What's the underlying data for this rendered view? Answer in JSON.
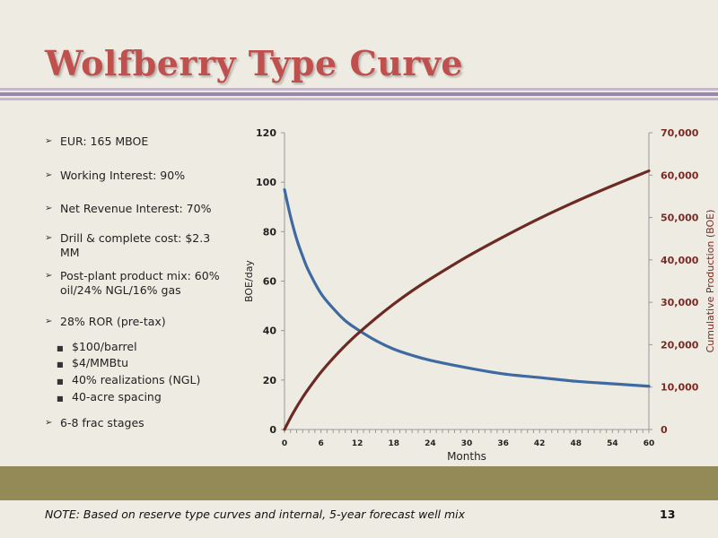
{
  "slide": {
    "title": "Wolfberry Type Curve",
    "note": "NOTE: Based on reserve type curves and internal, 5-year forecast well mix",
    "page_number": "13"
  },
  "bullets": [
    {
      "text": "EUR: 165 MBOE",
      "level": 1
    },
    {
      "text": "Working Interest: 90%",
      "level": 1
    },
    {
      "text": "Net Revenue Interest: 70%",
      "level": 1
    },
    {
      "text": "Drill & complete cost: $2.3 MM",
      "level": 1
    },
    {
      "text": "Post-plant product mix: 60% oil/24% NGL/16% gas",
      "level": 1
    },
    {
      "text": "28% ROR (pre-tax)",
      "level": 1
    },
    {
      "text": "$100/barrel",
      "level": 2
    },
    {
      "text": "$4/MMBtu",
      "level": 2
    },
    {
      "text": "40% realizations (NGL)",
      "level": 2
    },
    {
      "text": "40-acre spacing",
      "level": 2
    },
    {
      "text": "6-8 frac stages",
      "level": 1
    }
  ],
  "colors": {
    "title": "#c0504d",
    "boe_series": "#3e6aa1",
    "cumulative_series": "#6b2a22",
    "right_axis_text": "#7a2a22",
    "band": "#938a57",
    "rule": "#9b86ad"
  },
  "chart_data": {
    "type": "line",
    "xlabel": "Months",
    "ylabel": "BOE/day",
    "y2label": "Cumulative Production (BOE)",
    "xlim": [
      0,
      60
    ],
    "ylim": [
      0,
      120
    ],
    "y2lim": [
      0,
      70000
    ],
    "x_ticks": [
      0,
      6,
      12,
      18,
      24,
      30,
      36,
      42,
      48,
      54,
      60
    ],
    "y_ticks": [
      "0",
      "20",
      "40",
      "60",
      "80",
      "100",
      "120"
    ],
    "y2_ticks": [
      "0",
      "10,000",
      "20,000",
      "30,000",
      "40,000",
      "50,000",
      "60,000",
      "70,000"
    ],
    "x": [
      0,
      1,
      2,
      3,
      4,
      6,
      8,
      10,
      12,
      15,
      18,
      21,
      24,
      30,
      36,
      42,
      48,
      54,
      60
    ],
    "series": [
      {
        "axis": "left",
        "values": [
          97,
          86,
          77,
          70,
          64,
          55,
          49,
          44,
          40.5,
          36,
          32.5,
          30,
          28,
          25,
          22.5,
          21,
          19.5,
          18.5,
          17.5
        ]
      },
      {
        "axis": "right",
        "values": [
          0,
          2800,
          5300,
          7600,
          9700,
          13500,
          16800,
          19800,
          22500,
          26200,
          29600,
          32700,
          35500,
          40700,
          45400,
          49800,
          53800,
          57500,
          61000
        ]
      }
    ],
    "grid": false,
    "legend": "none"
  }
}
